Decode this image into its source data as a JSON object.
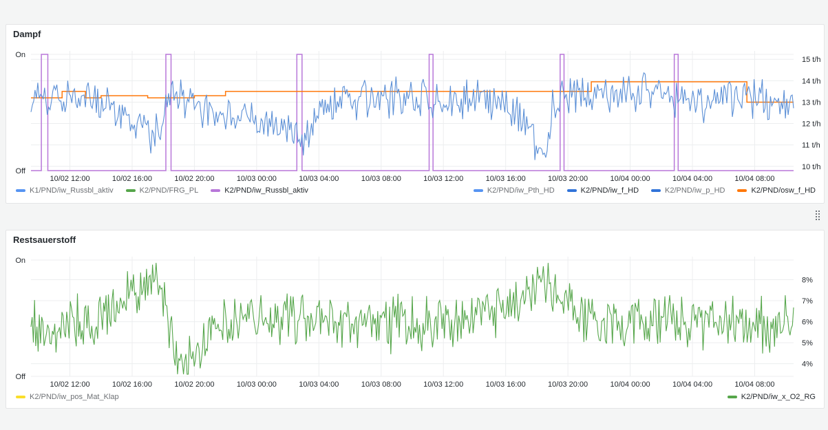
{
  "panels": [
    {
      "title": "Dampf",
      "legend_left": [
        {
          "label": "K1/PND/iw_Russbl_aktiv",
          "color": "#5794f2",
          "active": false
        },
        {
          "label": "K2/PND/FRG_PL",
          "color": "#56a64b",
          "active": false
        },
        {
          "label": "K2/PND/iw_Russbl_aktiv",
          "color": "#b877d9",
          "active": true
        }
      ],
      "legend_right": [
        {
          "label": "K2/PND/iw_Pth_HD",
          "color": "#5794f2",
          "active": false
        },
        {
          "label": "K2/PND/iw_f_HD",
          "color": "#3274d9",
          "active": true
        },
        {
          "label": "K2/PND/iw_p_HD",
          "color": "#3274d9",
          "active": false
        },
        {
          "label": "K2/PND/osw_f_HD",
          "color": "#ff780a",
          "active": true
        }
      ]
    },
    {
      "title": "Restsauerstoff",
      "legend_left": [
        {
          "label": "K2/PND/iw_pos_Mat_Klap",
          "color": "#fade2a",
          "active": false
        }
      ],
      "legend_right": [
        {
          "label": "K2/PND/iw_x_O2_RG",
          "color": "#56a64b",
          "active": true
        }
      ]
    }
  ],
  "chart_data": [
    {
      "type": "line",
      "title": "Dampf",
      "x_range": [
        "10/02 09:30",
        "10/04 10:30"
      ],
      "x_ticks": [
        "10/02 12:00",
        "10/02 16:00",
        "10/02 20:00",
        "10/03 00:00",
        "10/03 04:00",
        "10/03 08:00",
        "10/03 12:00",
        "10/03 16:00",
        "10/03 20:00",
        "10/04 00:00",
        "10/04 04:00",
        "10/04 08:00"
      ],
      "y_left": {
        "ticks": [
          "On",
          "Off"
        ]
      },
      "y_right": {
        "ticks": [
          "15 t/h",
          "14 t/h",
          "13 t/h",
          "12 t/h",
          "11 t/h",
          "10 t/h"
        ],
        "range": [
          9.8,
          15.2
        ],
        "unit": "t/h"
      },
      "grid": true,
      "series": [
        {
          "name": "K2/PND/iw_Russbl_aktiv",
          "color": "#b877d9",
          "axis": "left",
          "kind": "step",
          "on_intervals": [
            [
              "10/02 10:10",
              "10/02 10:35"
            ],
            [
              "10/02 18:10",
              "10/02 18:30"
            ],
            [
              "10/03 02:35",
              "10/03 02:55"
            ],
            [
              "10/03 11:05",
              "10/03 11:20"
            ],
            [
              "10/03 19:30",
              "10/03 19:45"
            ],
            [
              "10/04 02:50",
              "10/04 03:05"
            ]
          ]
        },
        {
          "name": "K2/PND/osw_f_HD",
          "color": "#ff780a",
          "axis": "right",
          "kind": "step",
          "x": [
            "10/02 09:30",
            "10/02 11:30",
            "10/02 13:00",
            "10/02 14:00",
            "10/02 17:00",
            "10/02 20:00",
            "10/02 22:00",
            "10/03 19:30",
            "10/03 21:30",
            "10/04 07:30",
            "10/04 10:30"
          ],
          "y": [
            13.2,
            13.5,
            13.2,
            13.3,
            13.2,
            13.3,
            13.5,
            13.5,
            13.95,
            13.0,
            13.0
          ]
        },
        {
          "name": "K2/PND/iw_f_HD",
          "color": "#5b8fd6",
          "axis": "right",
          "kind": "line",
          "x": [
            "10/02 09:30",
            "10/02 12:00",
            "10/02 15:00",
            "10/02 17:30",
            "10/02 18:30",
            "10/02 21:00",
            "10/03 00:00",
            "10/03 03:00",
            "10/03 04:00",
            "10/03 06:00",
            "10/03 08:00",
            "10/03 12:00",
            "10/03 16:00",
            "10/03 18:30",
            "10/03 19:00",
            "10/03 20:00",
            "10/03 23:00",
            "10/04 02:00",
            "10/04 04:30",
            "10/04 07:30",
            "10/04 10:30"
          ],
          "y": [
            13.2,
            13.3,
            12.6,
            11.3,
            13.4,
            12.6,
            12.4,
            11.2,
            12.8,
            13.0,
            13.3,
            13.1,
            13.2,
            10.6,
            12.8,
            13.3,
            13.4,
            13.5,
            13.0,
            13.3,
            12.7
          ]
        }
      ]
    },
    {
      "type": "line",
      "title": "Restsauerstoff",
      "x_range": [
        "10/02 09:30",
        "10/04 10:30"
      ],
      "x_ticks": [
        "10/02 12:00",
        "10/02 16:00",
        "10/02 20:00",
        "10/03 00:00",
        "10/03 04:00",
        "10/03 08:00",
        "10/03 12:00",
        "10/03 16:00",
        "10/03 20:00",
        "10/04 00:00",
        "10/04 04:00",
        "10/04 08:00"
      ],
      "y_left": {
        "ticks": [
          "On",
          "Off"
        ]
      },
      "y_right": {
        "ticks": [
          "8%",
          "7%",
          "6%",
          "5%",
          "4%"
        ],
        "range": [
          3.4,
          8.9
        ],
        "unit": "%"
      },
      "grid": true,
      "series": [
        {
          "name": "K2/PND/iw_x_O2_RG",
          "color": "#56a64b",
          "axis": "right",
          "kind": "line",
          "x": [
            "10/02 09:30",
            "10/02 10:30",
            "10/02 14:00",
            "10/02 17:30",
            "10/02 19:00",
            "10/02 22:00",
            "10/03 04:00",
            "10/03 10:00",
            "10/03 15:00",
            "10/03 18:30",
            "10/03 22:00",
            "10/04 04:00",
            "10/04 10:30"
          ],
          "y": [
            6.0,
            5.6,
            6.2,
            8.2,
            4.1,
            6.3,
            6.1,
            5.9,
            6.2,
            7.8,
            5.9,
            6.0,
            5.8
          ]
        },
        {
          "name": "K2/PND/iw_pos_Mat_Klap",
          "color": "#fade2a",
          "axis": "left",
          "kind": "step",
          "on_intervals": []
        }
      ]
    }
  ]
}
